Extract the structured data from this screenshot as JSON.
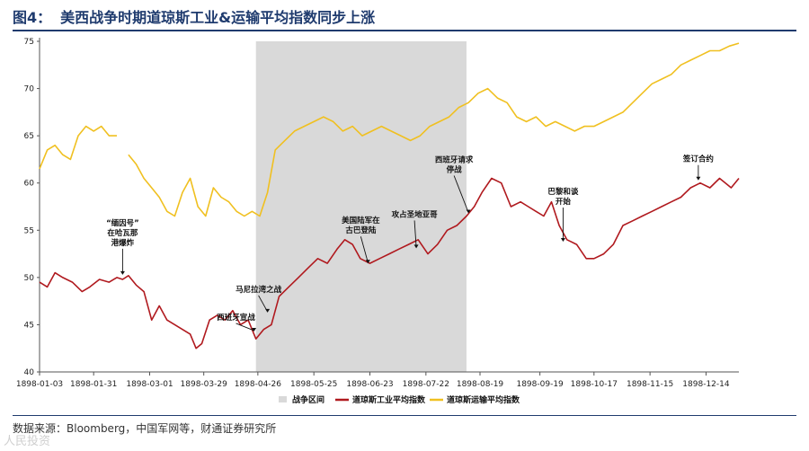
{
  "header": {
    "figure_label": "图4：",
    "title": "美西战争时期道琼斯工业&运输平均指数同步上涨"
  },
  "footer": {
    "source": "数据来源：Bloomberg，中国军网等，财通证券研究所",
    "watermark": "人民投资"
  },
  "colors": {
    "industrial": "#b0191e",
    "transport": "#f0c020",
    "war_band": "#d9d9d9",
    "title": "#1f3b6e"
  },
  "chart_data": {
    "type": "line",
    "ylim": [
      40,
      75
    ],
    "yticks": [
      40,
      45,
      50,
      55,
      60,
      65,
      70,
      75
    ],
    "xlim": [
      "1898-01-03",
      "1898-12-31"
    ],
    "xticks": [
      "1898-01-03",
      "1898-01-31",
      "1898-03-01",
      "1898-03-29",
      "1898-04-26",
      "1898-05-25",
      "1898-06-23",
      "1898-07-22",
      "1898-08-19",
      "1898-09-19",
      "1898-10-17",
      "1898-11-15",
      "1898-12-14"
    ],
    "shaded_region": {
      "name": "战争区间",
      "start": "1898-04-25",
      "end": "1898-08-12"
    },
    "series": [
      {
        "name": "道琼斯工业平均指数",
        "x": [
          "1898-01-03",
          "1898-01-07",
          "1898-01-11",
          "1898-01-15",
          "1898-01-20",
          "1898-01-25",
          "1898-01-29",
          "1898-02-03",
          "1898-02-08",
          "1898-02-12",
          "1898-02-15",
          "1898-02-18",
          "1898-02-22",
          "1898-02-26",
          "1898-03-02",
          "1898-03-06",
          "1898-03-10",
          "1898-03-14",
          "1898-03-18",
          "1898-03-22",
          "1898-03-25",
          "1898-03-28",
          "1898-04-01",
          "1898-04-05",
          "1898-04-09",
          "1898-04-13",
          "1898-04-17",
          "1898-04-21",
          "1898-04-25",
          "1898-04-29",
          "1898-05-03",
          "1898-05-07",
          "1898-05-12",
          "1898-05-17",
          "1898-05-22",
          "1898-05-27",
          "1898-06-01",
          "1898-06-06",
          "1898-06-10",
          "1898-06-14",
          "1898-06-18",
          "1898-06-23",
          "1898-06-28",
          "1898-07-03",
          "1898-07-08",
          "1898-07-13",
          "1898-07-18",
          "1898-07-23",
          "1898-07-28",
          "1898-08-02",
          "1898-08-07",
          "1898-08-12",
          "1898-08-16",
          "1898-08-20",
          "1898-08-25",
          "1898-08-30",
          "1898-09-04",
          "1898-09-09",
          "1898-09-13",
          "1898-09-17",
          "1898-09-21",
          "1898-09-25",
          "1898-09-29",
          "1898-10-03",
          "1898-10-08",
          "1898-10-13",
          "1898-10-17",
          "1898-10-22",
          "1898-10-27",
          "1898-11-01",
          "1898-11-06",
          "1898-11-11",
          "1898-11-16",
          "1898-11-21",
          "1898-11-26",
          "1898-12-01",
          "1898-12-06",
          "1898-12-11",
          "1898-12-16",
          "1898-12-21",
          "1898-12-24",
          "1898-12-27",
          "1898-12-31"
        ],
        "values": [
          49.5,
          49.0,
          50.5,
          50.0,
          49.5,
          48.5,
          49.0,
          49.8,
          49.5,
          50.0,
          49.8,
          50.2,
          49.2,
          48.5,
          45.5,
          47.0,
          45.5,
          45.0,
          44.5,
          44.0,
          42.5,
          43.0,
          45.5,
          46.0,
          45.5,
          46.5,
          45.0,
          45.5,
          43.5,
          44.5,
          45.0,
          48.0,
          49.0,
          50.0,
          51.0,
          52.0,
          51.5,
          53.0,
          54.0,
          53.5,
          52.0,
          51.5,
          52.0,
          52.5,
          53.0,
          53.5,
          54.0,
          52.5,
          53.5,
          55.0,
          55.5,
          56.5,
          57.5,
          59.0,
          60.5,
          60.0,
          57.5,
          58.0,
          57.5,
          57.0,
          56.5,
          58.0,
          55.5,
          54.0,
          53.5,
          52.0,
          52.0,
          52.5,
          53.5,
          55.5,
          56.0,
          56.5,
          57.0,
          57.5,
          58.0,
          58.5,
          59.5,
          60.0,
          59.5,
          60.5,
          60.0,
          59.5,
          60.5
        ]
      },
      {
        "name": "道琼斯运输平均指数",
        "x": [
          "1898-01-03",
          "1898-01-07",
          "1898-01-11",
          "1898-01-15",
          "1898-01-19",
          "1898-01-23",
          "1898-01-27",
          "1898-01-31",
          "1898-02-04",
          "1898-02-08",
          "1898-02-12",
          null,
          "1898-02-18",
          "1898-02-22",
          "1898-02-26",
          "1898-03-02",
          "1898-03-06",
          "1898-03-10",
          "1898-03-14",
          "1898-03-18",
          "1898-03-22",
          "1898-03-26",
          "1898-03-30",
          "1898-04-03",
          "1898-04-07",
          "1898-04-11",
          "1898-04-15",
          "1898-04-19",
          "1898-04-23",
          "1898-04-27",
          "1898-05-01",
          "1898-05-05",
          "1898-05-10",
          "1898-05-15",
          "1898-05-20",
          "1898-05-25",
          "1898-05-30",
          "1898-06-04",
          "1898-06-09",
          "1898-06-14",
          "1898-06-19",
          "1898-06-24",
          "1898-06-29",
          "1898-07-04",
          "1898-07-09",
          "1898-07-14",
          "1898-07-19",
          "1898-07-24",
          "1898-07-29",
          "1898-08-03",
          "1898-08-08",
          "1898-08-13",
          "1898-08-18",
          "1898-08-23",
          "1898-08-28",
          "1898-09-02",
          "1898-09-07",
          "1898-09-12",
          "1898-09-17",
          "1898-09-22",
          "1898-09-27",
          "1898-10-02",
          "1898-10-07",
          "1898-10-12",
          "1898-10-17",
          "1898-10-22",
          "1898-10-27",
          "1898-11-01",
          "1898-11-06",
          "1898-11-11",
          "1898-11-16",
          "1898-11-21",
          "1898-11-26",
          "1898-12-01",
          "1898-12-06",
          "1898-12-11",
          "1898-12-16",
          "1898-12-21",
          "1898-12-26",
          "1898-12-31"
        ],
        "values": [
          61.5,
          63.5,
          64.0,
          63.0,
          62.5,
          65.0,
          66.0,
          65.5,
          66.0,
          65.0,
          65.0,
          null,
          63.0,
          62.0,
          60.5,
          59.5,
          58.5,
          57.0,
          56.5,
          59.0,
          60.5,
          57.5,
          56.5,
          59.5,
          58.5,
          58.0,
          57.0,
          56.5,
          57.0,
          56.5,
          59.0,
          63.5,
          64.5,
          65.5,
          66.0,
          66.5,
          67.0,
          66.5,
          65.5,
          66.0,
          65.0,
          65.5,
          66.0,
          65.5,
          65.0,
          64.5,
          65.0,
          66.0,
          66.5,
          67.0,
          68.0,
          68.5,
          69.5,
          70.0,
          69.0,
          68.5,
          67.0,
          66.5,
          67.0,
          66.0,
          66.5,
          66.0,
          65.5,
          66.0,
          66.0,
          66.5,
          67.0,
          67.5,
          68.5,
          69.5,
          70.5,
          71.0,
          71.5,
          72.5,
          73.0,
          73.5,
          74.0,
          74.0,
          74.5,
          74.8
        ]
      }
    ],
    "annotations": [
      {
        "lines": [
          "“缅因号”",
          "在哈瓦那",
          "港爆炸"
        ],
        "date": "1898-02-15",
        "value": 50.0
      },
      {
        "lines": [
          "马尼拉湾之战"
        ],
        "date": "1898-05-01",
        "value": 46.0
      },
      {
        "lines": [
          "西班牙宣战"
        ],
        "date": "1898-04-24",
        "value": 44.0
      },
      {
        "lines": [
          "美国陆军在",
          "古巴登陆"
        ],
        "date": "1898-06-22",
        "value": 51.2
      },
      {
        "lines": [
          "攻占圣地亚哥"
        ],
        "date": "1898-07-17",
        "value": 52.8
      },
      {
        "lines": [
          "西班牙请求",
          "停战"
        ],
        "date": "1898-08-13",
        "value": 56.5
      },
      {
        "lines": [
          "巴黎和谈",
          "开始"
        ],
        "date": "1898-10-01",
        "value": 53.5
      },
      {
        "lines": [
          "签订合约"
        ],
        "date": "1898-12-10",
        "value": 60.0
      }
    ],
    "legend": {
      "placement": "bottom"
    }
  }
}
